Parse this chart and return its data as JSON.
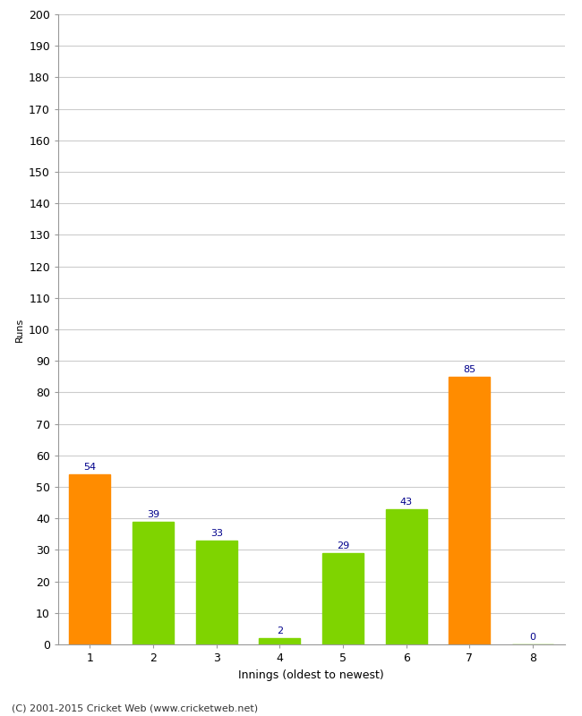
{
  "categories": [
    1,
    2,
    3,
    4,
    5,
    6,
    7,
    8
  ],
  "values": [
    54,
    39,
    33,
    2,
    29,
    43,
    85,
    0
  ],
  "bar_colors": [
    "#FF8C00",
    "#7FD400",
    "#7FD400",
    "#7FD400",
    "#7FD400",
    "#7FD400",
    "#FF8C00",
    "#7FD400"
  ],
  "xlabel": "Innings (oldest to newest)",
  "ylabel": "Runs",
  "ylim": [
    0,
    200
  ],
  "yticks": [
    0,
    10,
    20,
    30,
    40,
    50,
    60,
    70,
    80,
    90,
    100,
    110,
    120,
    130,
    140,
    150,
    160,
    170,
    180,
    190,
    200
  ],
  "label_color": "#00008B",
  "label_fontsize": 8,
  "footer": "(C) 2001-2015 Cricket Web (www.cricketweb.net)",
  "background_color": "#FFFFFF",
  "grid_color": "#CCCCCC",
  "bar_width": 0.65
}
